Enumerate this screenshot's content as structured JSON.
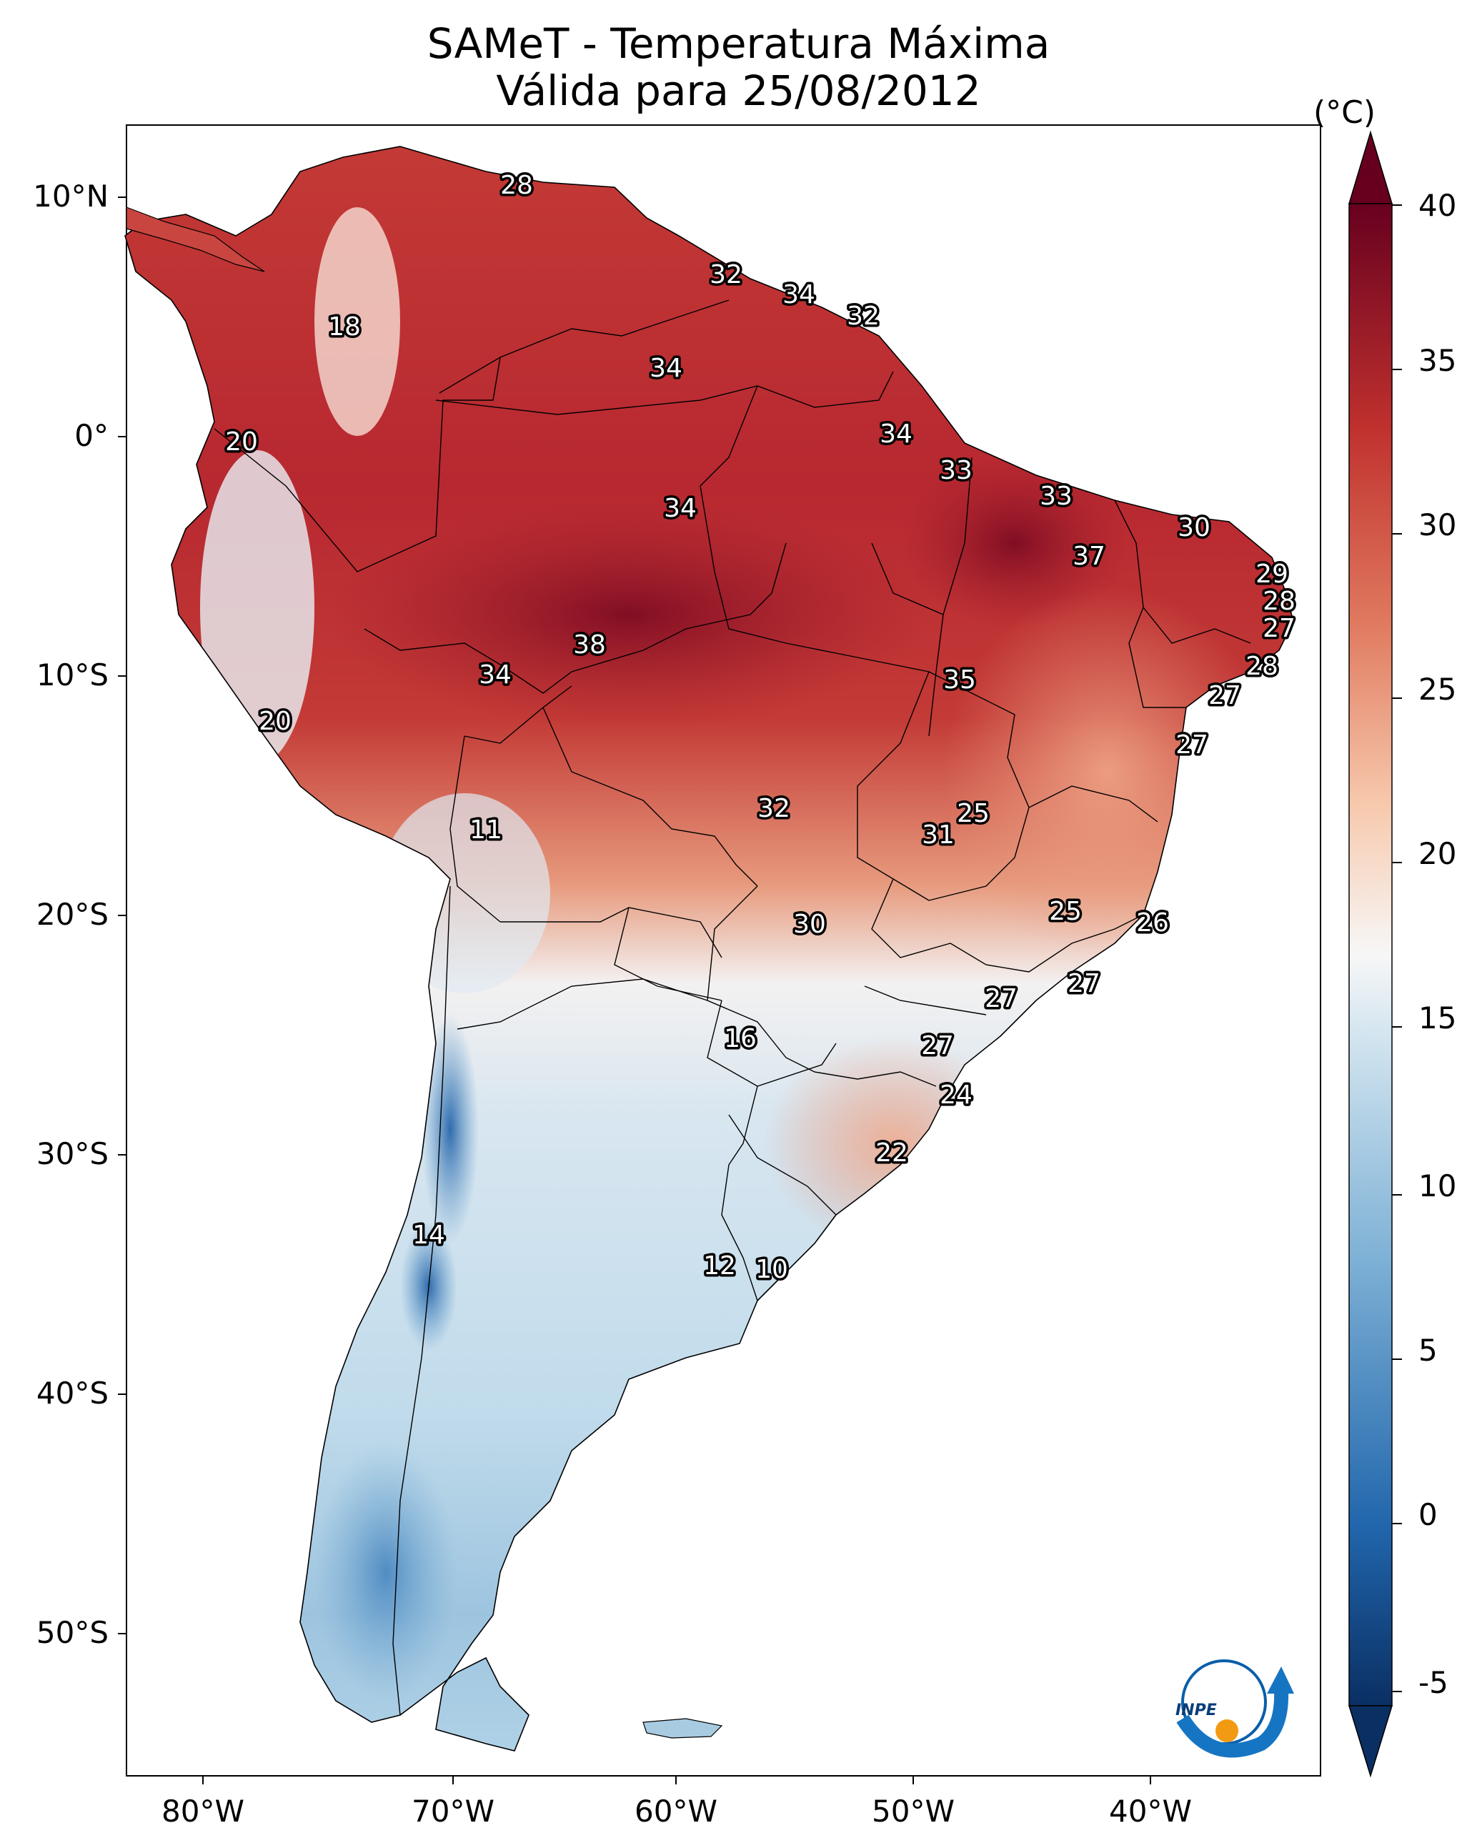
{
  "title": "SAMeT - Temperatura Máxima",
  "subtitle": "Válida para 25/08/2012",
  "colorbar": {
    "unit": "(°C)",
    "ticks": [
      "40",
      "35",
      "30",
      "25",
      "20",
      "15",
      "10",
      "5",
      "0",
      "-5"
    ],
    "range": [
      -7,
      41
    ],
    "colors": {
      "min": "#0a2f63",
      "low": "#2f71b3",
      "cool": "#a9cfe5",
      "neutral": "#f7f7f7",
      "warm": "#f4a582",
      "hot": "#c73a36",
      "max": "#67001f"
    }
  },
  "axes": {
    "lat_labels": [
      "10°N",
      "0°",
      "10°S",
      "20°S",
      "30°S",
      "40°S",
      "50°S"
    ],
    "lon_labels": [
      "80°W",
      "70°W",
      "60°W",
      "50°W",
      "40°W"
    ]
  },
  "map_labels": [
    "28",
    "18",
    "32",
    "34",
    "32",
    "34",
    "20",
    "34",
    "34",
    "33",
    "33",
    "30",
    "37",
    "29",
    "28",
    "27",
    "38",
    "34",
    "35",
    "28",
    "20",
    "27",
    "27",
    "11",
    "32",
    "25",
    "31",
    "30",
    "25",
    "26",
    "27",
    "27",
    "16",
    "27",
    "24",
    "22",
    "14",
    "12",
    "10"
  ],
  "logo": {
    "text": "INPE",
    "icon": "inpe-logo-icon"
  }
}
